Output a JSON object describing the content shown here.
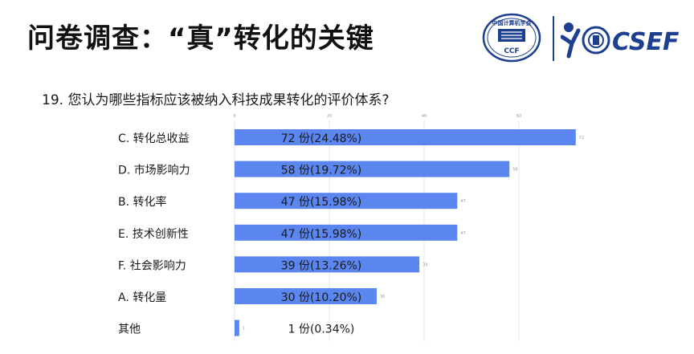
{
  "header": {
    "title": "问卷调查：“真”转化的关键",
    "logo_ccf_text": "中国计算机学会",
    "logo_ccf_abbr": "CCF",
    "logo_csef_text": "CSEF"
  },
  "question": {
    "text": "19. 您认为哪些指标应该被纳入科技成果转化的评价体系?"
  },
  "colors": {
    "bar": "#5b86ef",
    "grid": "#e5e5e5",
    "tick": "#999999",
    "brand": "#1d3f8f"
  },
  "chart_data": {
    "type": "bar",
    "orientation": "horizontal",
    "categories": [
      "C. 转化总收益",
      "D. 市场影响力",
      "B. 转化率",
      "E. 技术创新性",
      "F. 社会影响力",
      "A. 转化量",
      "其他"
    ],
    "values": [
      72,
      58,
      47,
      47,
      39,
      30,
      1
    ],
    "bar_labels": [
      "72 份(24.48%)",
      "58 份(19.72%)",
      "47 份(15.98%)",
      "47 份(15.98%)",
      "39 份(13.26%)",
      "30 份(10.20%)",
      "1 份(0.34%)"
    ],
    "x_ticks": [
      0,
      20,
      40,
      60
    ],
    "xlim": [
      0,
      72
    ],
    "grid": true,
    "legend": "none",
    "title": "",
    "xlabel": "",
    "ylabel": ""
  }
}
